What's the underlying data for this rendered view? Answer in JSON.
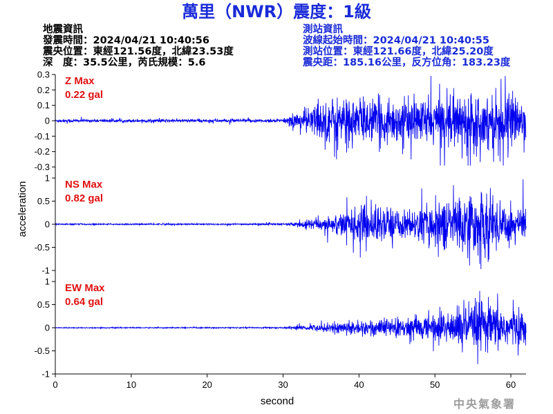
{
  "header": {
    "title": "萬里（NWR）震度：1級"
  },
  "earthquake_info": {
    "heading": "地震資訊",
    "origin_time": "發震時間：2024/04/21 10:40:56",
    "epicenter": "震央位置：東經121.56度，北緯23.53度",
    "depth_magnitude": "深　度：35.5公里，芮氏規模：5.6"
  },
  "station_info": {
    "heading": "測站資訊",
    "wave_start": "波線起始時間：2024/04/21 10:40:55",
    "location": "測站位置：東經121.66度，北緯25.20度",
    "distance": "震央距：185.16公里，反方位角：183.23度"
  },
  "credit": "中央氣象署",
  "colors": {
    "title": "#1a2bd8",
    "station_text": "#1a2bd8",
    "trace": "#0000ee",
    "max_label": "#e01010"
  },
  "chart_data": {
    "type": "line",
    "xlabel": "second",
    "ylabel": "acceleration",
    "xlim": [
      0,
      62
    ],
    "x_ticks": [
      "0",
      "10",
      "20",
      "30",
      "40",
      "50",
      "60"
    ],
    "x_tick_values": [
      0,
      10,
      20,
      30,
      40,
      50,
      60
    ],
    "grid": false,
    "panels": [
      {
        "name": "Z",
        "max_label": "Z Max",
        "max_value": "0.22 gal",
        "ylim": [
          -0.3,
          0.3
        ],
        "y_ticks": [
          "0.3",
          "0.2",
          "0.1",
          "0",
          "-0.1",
          "-0.2",
          "-0.3"
        ],
        "y_tick_values": [
          0.3,
          0.2,
          0.1,
          0,
          -0.1,
          -0.2,
          -0.3
        ],
        "envelope": [
          [
            0,
            0.01
          ],
          [
            30,
            0.012
          ],
          [
            31,
            0.04
          ],
          [
            33,
            0.09
          ],
          [
            38,
            0.17
          ],
          [
            45,
            0.14
          ],
          [
            52,
            0.17
          ],
          [
            56,
            0.2
          ],
          [
            62,
            0.15
          ]
        ]
      },
      {
        "name": "NS",
        "max_label": "NS Max",
        "max_value": "0.82 gal",
        "ylim": [
          -1,
          1
        ],
        "y_ticks": [
          "1",
          "0.5",
          "0",
          "-0.5",
          "-1"
        ],
        "y_tick_values": [
          1,
          0.5,
          0,
          -0.5,
          -1
        ],
        "envelope": [
          [
            0,
            0.015
          ],
          [
            30,
            0.02
          ],
          [
            32,
            0.06
          ],
          [
            35,
            0.14
          ],
          [
            38,
            0.3
          ],
          [
            42,
            0.45
          ],
          [
            47,
            0.3
          ],
          [
            50,
            0.5
          ],
          [
            55,
            0.72
          ],
          [
            59,
            0.55
          ],
          [
            62,
            0.4
          ]
        ]
      },
      {
        "name": "EW",
        "max_label": "EW Max",
        "max_value": "0.64 gal",
        "ylim": [
          -1,
          1
        ],
        "y_ticks": [
          "1",
          "0.5",
          "0",
          "-0.5",
          "-1"
        ],
        "y_tick_values": [
          1,
          0.5,
          0,
          -0.5,
          -1
        ],
        "envelope": [
          [
            0,
            0.01
          ],
          [
            30,
            0.015
          ],
          [
            32,
            0.04
          ],
          [
            36,
            0.1
          ],
          [
            40,
            0.18
          ],
          [
            45,
            0.22
          ],
          [
            50,
            0.3
          ],
          [
            53,
            0.45
          ],
          [
            56,
            0.6
          ],
          [
            59,
            0.5
          ],
          [
            62,
            0.35
          ]
        ]
      }
    ]
  }
}
